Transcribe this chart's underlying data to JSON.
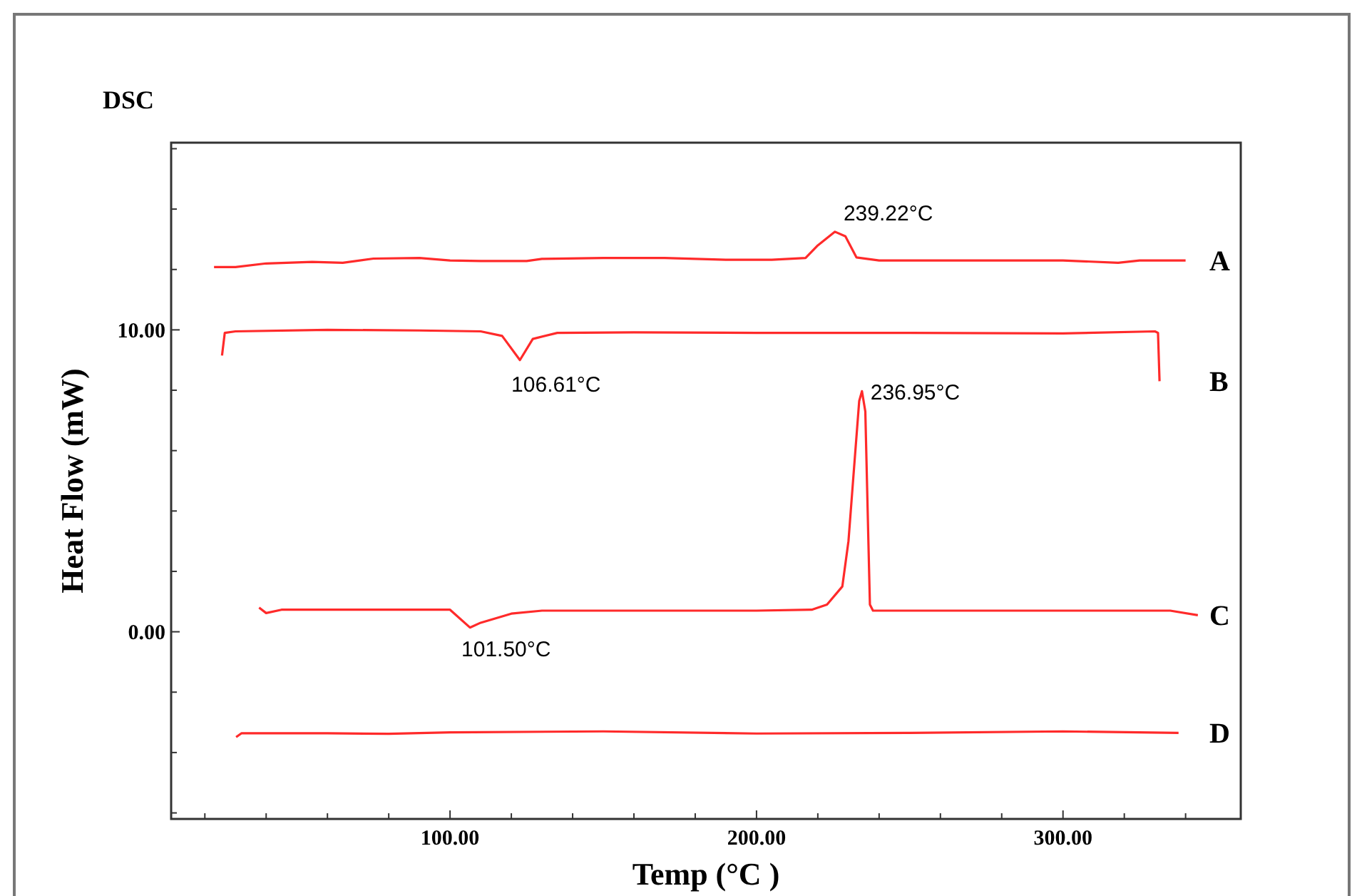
{
  "chart_data": {
    "type": "line",
    "title": "DSC",
    "xlabel": "Temp (°C )",
    "ylabel": "Heat Flow (mW)",
    "xlim": [
      9,
      358
    ],
    "ylim": [
      -6.2,
      16.2
    ],
    "xticks": [
      {
        "value": 20,
        "label": null
      },
      {
        "value": 40,
        "label": null
      },
      {
        "value": 60,
        "label": null
      },
      {
        "value": 80,
        "label": null
      },
      {
        "value": 100,
        "label": "100.00"
      },
      {
        "value": 120,
        "label": null
      },
      {
        "value": 140,
        "label": null
      },
      {
        "value": 160,
        "label": null
      },
      {
        "value": 180,
        "label": null
      },
      {
        "value": 200,
        "label": "200.00"
      },
      {
        "value": 220,
        "label": null
      },
      {
        "value": 240,
        "label": null
      },
      {
        "value": 260,
        "label": null
      },
      {
        "value": 280,
        "label": null
      },
      {
        "value": 300,
        "label": "300.00"
      },
      {
        "value": 320,
        "label": null
      },
      {
        "value": 340,
        "label": null
      }
    ],
    "yticks": [
      {
        "value": -6,
        "label": null
      },
      {
        "value": -4,
        "label": null
      },
      {
        "value": -2,
        "label": null
      },
      {
        "value": 0,
        "label": "0.00"
      },
      {
        "value": 2,
        "label": null
      },
      {
        "value": 4,
        "label": null
      },
      {
        "value": 6,
        "label": null
      },
      {
        "value": 8,
        "label": null
      },
      {
        "value": 10,
        "label": "10.00"
      },
      {
        "value": 12,
        "label": null
      },
      {
        "value": 14,
        "label": null
      },
      {
        "value": 16,
        "label": null
      }
    ],
    "grid": false,
    "marker": "none",
    "line_style": "solid",
    "series": [
      {
        "name": "A",
        "color": "#ff2a2a",
        "x": [
          23,
          30,
          40,
          55,
          65,
          75,
          90,
          100,
          110,
          125,
          130,
          150,
          170,
          190,
          205,
          216,
          220,
          225.6,
          229,
          232.6,
          240,
          260,
          300,
          318,
          325,
          340
        ],
        "values": [
          12.08,
          12.08,
          12.2,
          12.25,
          12.22,
          12.36,
          12.38,
          12.3,
          12.28,
          12.28,
          12.35,
          12.38,
          12.38,
          12.32,
          12.32,
          12.38,
          12.8,
          13.25,
          13.1,
          12.4,
          12.3,
          12.3,
          12.3,
          12.22,
          12.3,
          12.3
        ]
      },
      {
        "name": "B",
        "color": "#ff2a2a",
        "x": [
          25.6,
          26.5,
          30,
          60,
          90,
          110,
          117,
          122.8,
          127,
          135,
          160,
          200,
          250,
          300,
          330,
          331,
          331.5
        ],
        "values": [
          9.15,
          9.9,
          9.95,
          10,
          9.98,
          9.95,
          9.8,
          9,
          9.7,
          9.9,
          9.92,
          9.9,
          9.9,
          9.88,
          9.95,
          9.9,
          8.3
        ]
      },
      {
        "name": "C",
        "color": "#ff2a2a",
        "x": [
          37.7,
          40,
          45,
          70,
          100,
          106.5,
          110,
          120,
          130,
          160,
          200,
          218,
          223,
          228,
          230,
          231.5,
          233.5,
          234.4,
          235.5,
          236.5,
          237,
          238,
          260,
          300,
          335,
          344
        ],
        "values": [
          0.8,
          0.62,
          0.73,
          0.73,
          0.73,
          0.14,
          0.3,
          0.6,
          0.7,
          0.7,
          0.7,
          0.73,
          0.9,
          1.5,
          3,
          5,
          7.64,
          7.97,
          7.3,
          3,
          0.9,
          0.7,
          0.7,
          0.7,
          0.7,
          0.55
        ]
      },
      {
        "name": "D",
        "color": "#ff2a2a",
        "x": [
          30.2,
          32,
          60,
          80,
          100,
          150,
          200,
          250,
          300,
          337.7
        ],
        "values": [
          -3.49,
          -3.36,
          -3.36,
          -3.38,
          -3.33,
          -3.3,
          -3.37,
          -3.35,
          -3.3,
          -3.35
        ]
      }
    ],
    "annotations": [
      {
        "text": "239.22°C",
        "x": 225.6,
        "y": 13.25
      },
      {
        "text": "106.61°C",
        "x": 122.8,
        "y": 9
      },
      {
        "text": "236.95°C",
        "x": 234.4,
        "y": 7.97
      },
      {
        "text": "101.50°C",
        "x": 106.5,
        "y": 0.14
      }
    ]
  }
}
